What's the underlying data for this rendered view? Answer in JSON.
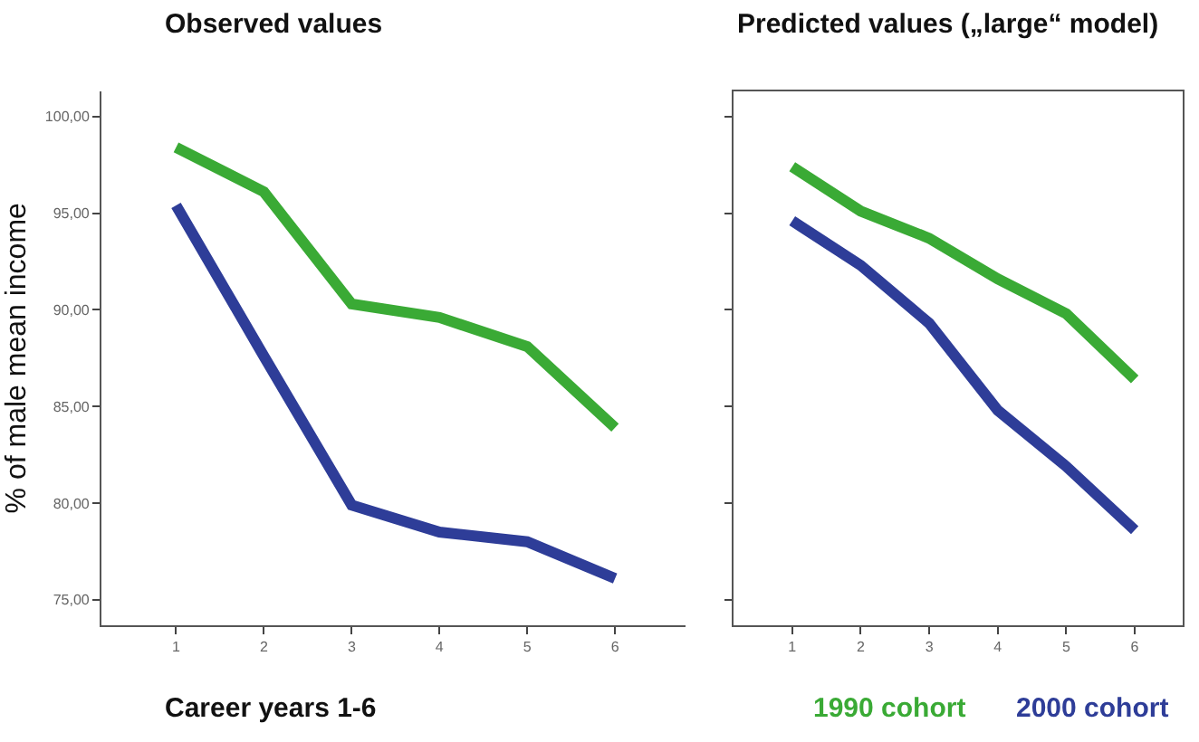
{
  "chart_data": [
    {
      "type": "line",
      "title": "Observed values",
      "xlabel": "Career years 1-6",
      "ylabel": "% of male mean income",
      "x": [
        1,
        2,
        3,
        4,
        5,
        6
      ],
      "xlim": [
        0.15,
        6.8
      ],
      "xticks": [
        1,
        2,
        3,
        4,
        5,
        6
      ],
      "ylim": [
        73.7,
        101.3
      ],
      "yticks": [
        {
          "value": 75,
          "label": "75,00"
        },
        {
          "value": 80,
          "label": "80,00"
        },
        {
          "value": 85,
          "label": "85,00"
        },
        {
          "value": 90,
          "label": "90,00"
        },
        {
          "value": 95,
          "label": "95,00"
        },
        {
          "value": 100,
          "label": "100,00"
        }
      ],
      "marker": "none",
      "line_style": "solid",
      "series": [
        {
          "color": "#3aaa35",
          "values": [
            98.4,
            96.1,
            90.3,
            89.6,
            88.1,
            83.9
          ]
        },
        {
          "color": "#2e3d98",
          "values": [
            95.4,
            87.6,
            79.9,
            78.5,
            78.0,
            76.1
          ]
        }
      ]
    },
    {
      "type": "line",
      "title": "Predicted values („large“ model)",
      "x": [
        1,
        2,
        3,
        4,
        5,
        6
      ],
      "xlim": [
        0.15,
        6.7
      ],
      "xticks": [
        1,
        2,
        3,
        4,
        5,
        6
      ],
      "ylim": [
        73.7,
        101.3
      ],
      "yticks": [
        {
          "value": 75,
          "label": null
        },
        {
          "value": 80,
          "label": null
        },
        {
          "value": 85,
          "label": null
        },
        {
          "value": 90,
          "label": null
        },
        {
          "value": 95,
          "label": null
        },
        {
          "value": 100,
          "label": null
        }
      ],
      "tick_labels": "x",
      "marker": "none",
      "line_style": "solid",
      "series": [
        {
          "name": "1990 cohort",
          "color": "#3aaa35",
          "values": [
            97.4,
            95.1,
            93.7,
            91.6,
            89.8,
            86.4
          ]
        },
        {
          "name": "2000 cohort",
          "color": "#2e3d98",
          "values": [
            94.6,
            92.3,
            89.3,
            84.8,
            81.9,
            78.6
          ]
        }
      ]
    }
  ]
}
